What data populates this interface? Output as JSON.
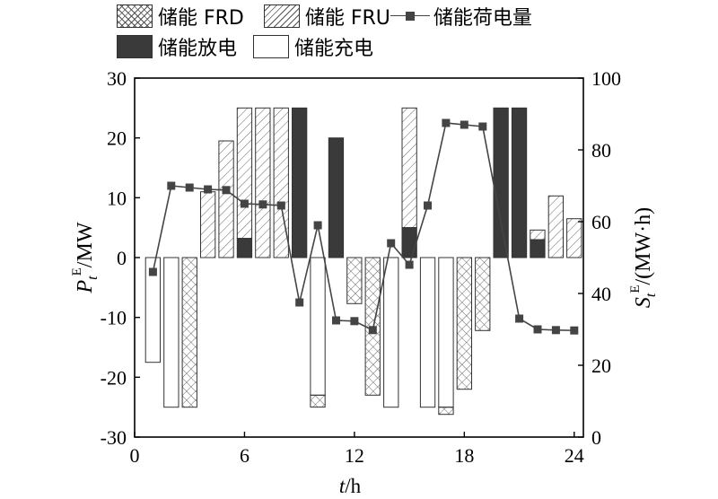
{
  "legend": {
    "frd_label": "储能 FRD",
    "fru_label": "储能 FRU",
    "soc_label": "储能荷电量",
    "discharge_label": "储能放电",
    "charge_label": "储能充电"
  },
  "axes": {
    "x_label_var": "t",
    "x_label_unit": "/h",
    "y_left_label_var": "P",
    "y_left_label_sub": "t",
    "y_left_label_sup": "E",
    "y_left_label_unit": "/MW",
    "y_right_label_var": "S",
    "y_right_label_sub": "t",
    "y_right_label_sup": "E",
    "y_right_label_unit": "/(MW·h)"
  },
  "chart_data": {
    "type": "bar",
    "x": [
      1,
      2,
      3,
      4,
      5,
      6,
      7,
      8,
      9,
      10,
      11,
      12,
      13,
      14,
      15,
      16,
      17,
      18,
      19,
      20,
      21,
      22,
      23,
      24
    ],
    "xlim": [
      0,
      24.5
    ],
    "xticks": [
      0,
      6,
      12,
      18,
      24
    ],
    "ylim_left": [
      -30,
      30
    ],
    "yticks_left": [
      -30,
      -20,
      -10,
      0,
      10,
      20,
      30
    ],
    "ylim_right": [
      0,
      100
    ],
    "yticks_right": [
      0,
      20,
      40,
      60,
      80,
      100
    ],
    "series": [
      {
        "key": "discharge",
        "name": "储能放电",
        "values": [
          0,
          0,
          0,
          0,
          0,
          3.2,
          0,
          0,
          25,
          0,
          20,
          0,
          0,
          0,
          5,
          0,
          0,
          0,
          0,
          25,
          25,
          3,
          0,
          0
        ]
      },
      {
        "key": "charge",
        "name": "储能充电",
        "values": [
          -17.5,
          -25,
          0,
          0,
          0,
          0,
          0,
          0,
          0,
          -23,
          0,
          0,
          0,
          -25,
          0,
          -25,
          -25,
          0,
          0,
          0,
          0,
          0,
          0,
          0
        ]
      },
      {
        "key": "fru",
        "name": "储能 FRU",
        "values": [
          0,
          0,
          0,
          11,
          19.5,
          21.8,
          25,
          25,
          0,
          0,
          0,
          0,
          0,
          0,
          20,
          0,
          0,
          0,
          0,
          0,
          0,
          1.6,
          10.3,
          6.5
        ]
      },
      {
        "key": "frd",
        "name": "储能 FRD",
        "values": [
          0,
          0,
          -25,
          0,
          0,
          0,
          0,
          0,
          0,
          -2,
          0,
          -7.7,
          -23,
          0,
          0,
          0,
          -1.2,
          -22,
          -12.2,
          0,
          0,
          0,
          0,
          0
        ]
      },
      {
        "key": "soc",
        "name": "储能荷电量",
        "type": "line",
        "axis": "right",
        "values": [
          46,
          70,
          69.5,
          69,
          68.8,
          65,
          64.8,
          64.5,
          37.5,
          59,
          32.5,
          32.3,
          29.8,
          54,
          48,
          64.5,
          87.5,
          87,
          86.5,
          null,
          33,
          30,
          29.8,
          29.7
        ]
      }
    ]
  }
}
